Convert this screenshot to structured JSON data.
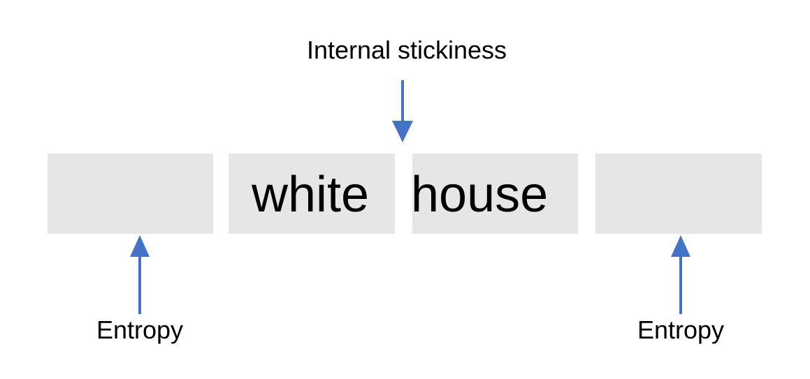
{
  "title": "Internal stickiness",
  "words": [
    "white",
    "house"
  ],
  "entropy_left": "Entropy",
  "entropy_right": "Entropy",
  "colors": {
    "arrow": "#4472c4",
    "box": "#e6e6e6",
    "text": "#000000"
  }
}
